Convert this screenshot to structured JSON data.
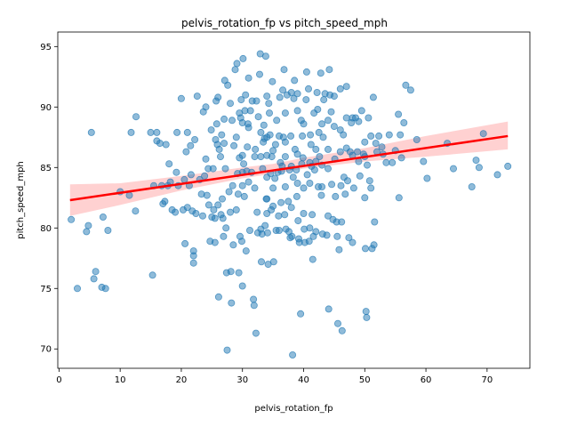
{
  "chart_data": {
    "type": "scatter",
    "title": "pelvis_rotation_fp vs pitch_speed_mph",
    "xlabel": "pelvis_rotation_fp",
    "ylabel": "pitch_speed_mph",
    "xlim": [
      -0.2,
      77
    ],
    "ylim": [
      68.4,
      96.2
    ],
    "xticks": [
      0,
      10,
      20,
      30,
      40,
      50,
      60,
      70
    ],
    "yticks": [
      70,
      75,
      80,
      85,
      90,
      95
    ],
    "grid": false,
    "colors": {
      "points": "#1f77b4",
      "trend_line": "#ff0000",
      "ci_band": "#ff9999"
    },
    "trend_line": {
      "x": [
        1.8,
        73.4
      ],
      "y": [
        82.3,
        87.6
      ]
    },
    "ci_band": {
      "x": [
        1.8,
        10,
        20,
        30,
        35,
        40,
        50,
        60,
        73.4
      ],
      "lower": [
        81.0,
        81.9,
        83.1,
        84.1,
        84.5,
        84.9,
        85.5,
        85.9,
        86.5
      ],
      "upper": [
        83.6,
        83.7,
        84.3,
        85.0,
        85.3,
        85.8,
        86.6,
        87.6,
        88.8
      ]
    },
    "points": [
      [
        2,
        80.7
      ],
      [
        3,
        75
      ],
      [
        4.5,
        79.7
      ],
      [
        4.8,
        80.2
      ],
      [
        5.3,
        87.9
      ],
      [
        5.7,
        75.8
      ],
      [
        6,
        76.4
      ],
      [
        7,
        75.1
      ],
      [
        7.2,
        80.9
      ],
      [
        7.6,
        75
      ],
      [
        8,
        79.8
      ],
      [
        10,
        83
      ],
      [
        11.5,
        82.7
      ],
      [
        11.8,
        87.9
      ],
      [
        12.5,
        81.4
      ],
      [
        12.6,
        89.2
      ],
      [
        15,
        87.9
      ],
      [
        15.3,
        76.1
      ],
      [
        15.5,
        83.5
      ],
      [
        16,
        87.9
      ],
      [
        16,
        87.2
      ],
      [
        16.5,
        87
      ],
      [
        16.8,
        83.5
      ],
      [
        17,
        82
      ],
      [
        17.3,
        82.2
      ],
      [
        17.5,
        86.9
      ],
      [
        17.8,
        83.5
      ],
      [
        18,
        85.3
      ],
      [
        18.2,
        83.8
      ],
      [
        18.5,
        81.5
      ],
      [
        19,
        81.3
      ],
      [
        19.2,
        84.6
      ],
      [
        19.5,
        83.5
      ],
      [
        19.3,
        87.9
      ],
      [
        20,
        90.7
      ],
      [
        20.3,
        81.5
      ],
      [
        20.5,
        84
      ],
      [
        20.6,
        78.7
      ],
      [
        20.8,
        86.3
      ],
      [
        21,
        81.7
      ],
      [
        21,
        87.9
      ],
      [
        21.3,
        83.5
      ],
      [
        21.5,
        86.8
      ],
      [
        21.6,
        84.4
      ],
      [
        21.8,
        81.4
      ],
      [
        22,
        78.1
      ],
      [
        22,
        77.7
      ],
      [
        22,
        77.1
      ],
      [
        22.2,
        87.3
      ],
      [
        22.4,
        81.2
      ],
      [
        22.6,
        90.9
      ],
      [
        23,
        84
      ],
      [
        23.3,
        82.8
      ],
      [
        23.5,
        81
      ],
      [
        23.6,
        89.6
      ],
      [
        23.8,
        84.3
      ],
      [
        24,
        90
      ],
      [
        24,
        85.7
      ],
      [
        24.2,
        82.7
      ],
      [
        24.4,
        84.9
      ],
      [
        24.5,
        81.9
      ],
      [
        24.7,
        78.9
      ],
      [
        24.9,
        88.1
      ],
      [
        25,
        80.9
      ],
      [
        25.2,
        84.9
      ],
      [
        25.3,
        81.5
      ],
      [
        25.5,
        80.8
      ],
      [
        25.5,
        78.8
      ],
      [
        25.6,
        87.3
      ],
      [
        25.7,
        90.5
      ],
      [
        25.8,
        88.6
      ],
      [
        25.9,
        86.9
      ],
      [
        26,
        90.8
      ],
      [
        26,
        81.9
      ],
      [
        26.1,
        74.3
      ],
      [
        26.2,
        86.5
      ],
      [
        26.4,
        85.9
      ],
      [
        26.5,
        81.1
      ],
      [
        26.6,
        87.7
      ],
      [
        26.7,
        82.4
      ],
      [
        26.8,
        80.8
      ],
      [
        26.9,
        79.3
      ],
      [
        27,
        89
      ],
      [
        27,
        87
      ],
      [
        27.1,
        92.2
      ],
      [
        27.2,
        84.9
      ],
      [
        27.3,
        80
      ],
      [
        27.4,
        76.3
      ],
      [
        27.5,
        69.9
      ],
      [
        27.6,
        91.8
      ],
      [
        27.8,
        83
      ],
      [
        28,
        90.3
      ],
      [
        28,
        81.3
      ],
      [
        28.1,
        76.4
      ],
      [
        28.2,
        73.8
      ],
      [
        28.3,
        88.9
      ],
      [
        28.4,
        83.5
      ],
      [
        28.5,
        78.6
      ],
      [
        28.6,
        86.8
      ],
      [
        28.8,
        93.1
      ],
      [
        29,
        87.5
      ],
      [
        29,
        81.5
      ],
      [
        29.1,
        93.6
      ],
      [
        29.2,
        84.5
      ],
      [
        29.3,
        82.8
      ],
      [
        29.4,
        76.3
      ],
      [
        29.5,
        89.5
      ],
      [
        29.5,
        85.8
      ],
      [
        29.6,
        79.3
      ],
      [
        29.7,
        89.1
      ],
      [
        29.8,
        90.6
      ],
      [
        29.9,
        78.9
      ],
      [
        30,
        86
      ],
      [
        30,
        88.7
      ],
      [
        30,
        84.6
      ],
      [
        30,
        83.5
      ],
      [
        30,
        75.2
      ],
      [
        30.1,
        94
      ],
      [
        30.2,
        85.3
      ],
      [
        30.3,
        82.6
      ],
      [
        30.4,
        89.7
      ],
      [
        30.5,
        91
      ],
      [
        30.6,
        78.1
      ],
      [
        30.7,
        84.7
      ],
      [
        30.8,
        86.7
      ],
      [
        30.9,
        88.6
      ],
      [
        31,
        92.4
      ],
      [
        31,
        88.3
      ],
      [
        31,
        83.8
      ],
      [
        31.2,
        79.8
      ],
      [
        31.3,
        89.7
      ],
      [
        31.5,
        84.6
      ],
      [
        31.6,
        90.5
      ],
      [
        31.8,
        74.1
      ],
      [
        31.9,
        73.6
      ],
      [
        32,
        85.9
      ],
      [
        32,
        83.3
      ],
      [
        32.1,
        86.5
      ],
      [
        32.2,
        71.3
      ],
      [
        32.3,
        90.5
      ],
      [
        32.4,
        81.3
      ],
      [
        32.5,
        79.6
      ],
      [
        32.6,
        89.2
      ],
      [
        32.8,
        92.7
      ],
      [
        32.9,
        94.4
      ],
      [
        33,
        87.9
      ],
      [
        33,
        85.9
      ],
      [
        33,
        79.9
      ],
      [
        33.1,
        77.2
      ],
      [
        33.2,
        79.5
      ],
      [
        33.3,
        84.9
      ],
      [
        33.4,
        87.1
      ],
      [
        33.5,
        88.5
      ],
      [
        33.6,
        87.4
      ],
      [
        33.7,
        80.2
      ],
      [
        33.8,
        94.2
      ],
      [
        33.9,
        82.4
      ],
      [
        34,
        90.9
      ],
      [
        34,
        87.5
      ],
      [
        34,
        86
      ],
      [
        34,
        84.2
      ],
      [
        34,
        82.4
      ],
      [
        34,
        81.2
      ],
      [
        34.1,
        79.6
      ],
      [
        34.2,
        77
      ],
      [
        34.3,
        90.3
      ],
      [
        34.4,
        89.5
      ],
      [
        34.5,
        87.7
      ],
      [
        34.6,
        84.5
      ],
      [
        34.7,
        81.5
      ],
      [
        34.8,
        85.9
      ],
      [
        34.9,
        92.1
      ],
      [
        35,
        83.3
      ],
      [
        35,
        86.4
      ],
      [
        35,
        81.8
      ],
      [
        35.1,
        77.2
      ],
      [
        35.3,
        84.1
      ],
      [
        35.4,
        86.9
      ],
      [
        35.5,
        79.8
      ],
      [
        35.6,
        88.9
      ],
      [
        35.8,
        84.6
      ],
      [
        35.9,
        81
      ],
      [
        36,
        87.6
      ],
      [
        36,
        79.8
      ],
      [
        36.1,
        90.8
      ],
      [
        36.2,
        85.4
      ],
      [
        36.3,
        82.1
      ],
      [
        36.4,
        84.7
      ],
      [
        36.5,
        85.1
      ],
      [
        36.6,
        91.4
      ],
      [
        36.7,
        87.5
      ],
      [
        36.8,
        93.1
      ],
      [
        36.9,
        81.1
      ],
      [
        37,
        89.5
      ],
      [
        37,
        87.1
      ],
      [
        37,
        85.9
      ],
      [
        37,
        83.4
      ],
      [
        37.1,
        79.9
      ],
      [
        37.3,
        91
      ],
      [
        37.5,
        82.2
      ],
      [
        37.6,
        79.7
      ],
      [
        37.7,
        84.8
      ],
      [
        37.8,
        79.2
      ],
      [
        37.9,
        87.6
      ],
      [
        38,
        91.2
      ],
      [
        38,
        85.1
      ],
      [
        38,
        81.7
      ],
      [
        38.1,
        79.3
      ],
      [
        38.2,
        69.5
      ],
      [
        38.3,
        84.2
      ],
      [
        38.4,
        90.7
      ],
      [
        38.5,
        92.2
      ],
      [
        38.6,
        86.5
      ],
      [
        38.8,
        84.8
      ],
      [
        38.9,
        82.6
      ],
      [
        39,
        91.1
      ],
      [
        39,
        89.7
      ],
      [
        39,
        86.1
      ],
      [
        39,
        83.7
      ],
      [
        39.1,
        80.6
      ],
      [
        39.2,
        79.1
      ],
      [
        39.3,
        78.8
      ],
      [
        39.5,
        72.9
      ],
      [
        39.6,
        88.9
      ],
      [
        39.7,
        85.3
      ],
      [
        39.8,
        87.6
      ],
      [
        39.9,
        85.8
      ],
      [
        40,
        88.6
      ],
      [
        40,
        83.3
      ],
      [
        40,
        81.2
      ],
      [
        40.1,
        79.9
      ],
      [
        40.2,
        78.8
      ],
      [
        40.4,
        90.6
      ],
      [
        40.5,
        92.9
      ],
      [
        40.6,
        84.4
      ],
      [
        40.8,
        91.5
      ],
      [
        40.9,
        78.9
      ],
      [
        41,
        85.4
      ],
      [
        41,
        83.7
      ],
      [
        41,
        80
      ],
      [
        41.1,
        87.7
      ],
      [
        41.2,
        86.9
      ],
      [
        41.3,
        85.1
      ],
      [
        41.4,
        81.1
      ],
      [
        41.5,
        77.4
      ],
      [
        41.6,
        79.3
      ],
      [
        41.7,
        89.5
      ],
      [
        41.8,
        84.8
      ],
      [
        42,
        86.5
      ],
      [
        42,
        85.5
      ],
      [
        42,
        79.7
      ],
      [
        42.2,
        91.2
      ],
      [
        42.3,
        89.8
      ],
      [
        42.4,
        83.4
      ],
      [
        42.5,
        87.9
      ],
      [
        42.6,
        85.9
      ],
      [
        42.8,
        92.8
      ],
      [
        42.9,
        82.7
      ],
      [
        43,
        88.6
      ],
      [
        43,
        85.2
      ],
      [
        43,
        83.4
      ],
      [
        43.1,
        79.5
      ],
      [
        43.2,
        87.5
      ],
      [
        43.3,
        90.6
      ],
      [
        43.5,
        91.1
      ],
      [
        43.8,
        79.4
      ],
      [
        44,
        88.9
      ],
      [
        44,
        86.5
      ],
      [
        44,
        84.9
      ],
      [
        44,
        81
      ],
      [
        44.1,
        73.3
      ],
      [
        44.2,
        93.1
      ],
      [
        44.3,
        91
      ],
      [
        44.5,
        89.6
      ],
      [
        44.6,
        83.6
      ],
      [
        44.8,
        80.7
      ],
      [
        45,
        90.9
      ],
      [
        45,
        88.4
      ],
      [
        45.1,
        85.7
      ],
      [
        45.2,
        82.6
      ],
      [
        45.4,
        80.5
      ],
      [
        45.5,
        79.3
      ],
      [
        45.6,
        72.1
      ],
      [
        45.8,
        78.2
      ],
      [
        46,
        91.5
      ],
      [
        46,
        88.1
      ],
      [
        46,
        86.3
      ],
      [
        46.1,
        83.5
      ],
      [
        46.2,
        80.5
      ],
      [
        46.3,
        71.5
      ],
      [
        46.5,
        87.7
      ],
      [
        46.6,
        84.2
      ],
      [
        46.8,
        82.8
      ],
      [
        47,
        91.7
      ],
      [
        47,
        89.1
      ],
      [
        47,
        86.6
      ],
      [
        47.2,
        83.9
      ],
      [
        47.4,
        79.2
      ],
      [
        47.6,
        86.3
      ],
      [
        47.8,
        88.7
      ],
      [
        48,
        89.1
      ],
      [
        48,
        86
      ],
      [
        48,
        78.8
      ],
      [
        48.2,
        83.3
      ],
      [
        48.5,
        89.1
      ],
      [
        48.8,
        86.3
      ],
      [
        49,
        88.8
      ],
      [
        49,
        85.5
      ],
      [
        49.2,
        84.3
      ],
      [
        49.5,
        89.7
      ],
      [
        49.8,
        86.1
      ],
      [
        50,
        87.1
      ],
      [
        50,
        85.9
      ],
      [
        50,
        82.5
      ],
      [
        50.1,
        78.3
      ],
      [
        50.2,
        73.1
      ],
      [
        50.3,
        72.6
      ],
      [
        50.4,
        85.2
      ],
      [
        50.6,
        89.1
      ],
      [
        50.8,
        83.9
      ],
      [
        51,
        87.6
      ],
      [
        51,
        83.3
      ],
      [
        51.2,
        78.3
      ],
      [
        51.4,
        90.8
      ],
      [
        51.5,
        78.6
      ],
      [
        51.6,
        80.5
      ],
      [
        51.8,
        87
      ],
      [
        52,
        86.3
      ],
      [
        52.3,
        87.6
      ],
      [
        52.8,
        86.7
      ],
      [
        53,
        86.1
      ],
      [
        53.5,
        85.4
      ],
      [
        54,
        87.7
      ],
      [
        54.5,
        85.4
      ],
      [
        55,
        86.4
      ],
      [
        55.5,
        89.4
      ],
      [
        55.6,
        82.5
      ],
      [
        55.8,
        87.7
      ],
      [
        56,
        85.8
      ],
      [
        56.4,
        88.7
      ],
      [
        56.7,
        91.8
      ],
      [
        57.5,
        91.4
      ],
      [
        58.5,
        87.3
      ],
      [
        59.6,
        85.5
      ],
      [
        60.2,
        84.1
      ],
      [
        63.5,
        87
      ],
      [
        64.5,
        84.9
      ],
      [
        67.5,
        83.4
      ],
      [
        68.2,
        85.6
      ],
      [
        68.7,
        85
      ],
      [
        69.4,
        87.8
      ],
      [
        71.7,
        84.4
      ],
      [
        73.4,
        85.1
      ]
    ]
  }
}
